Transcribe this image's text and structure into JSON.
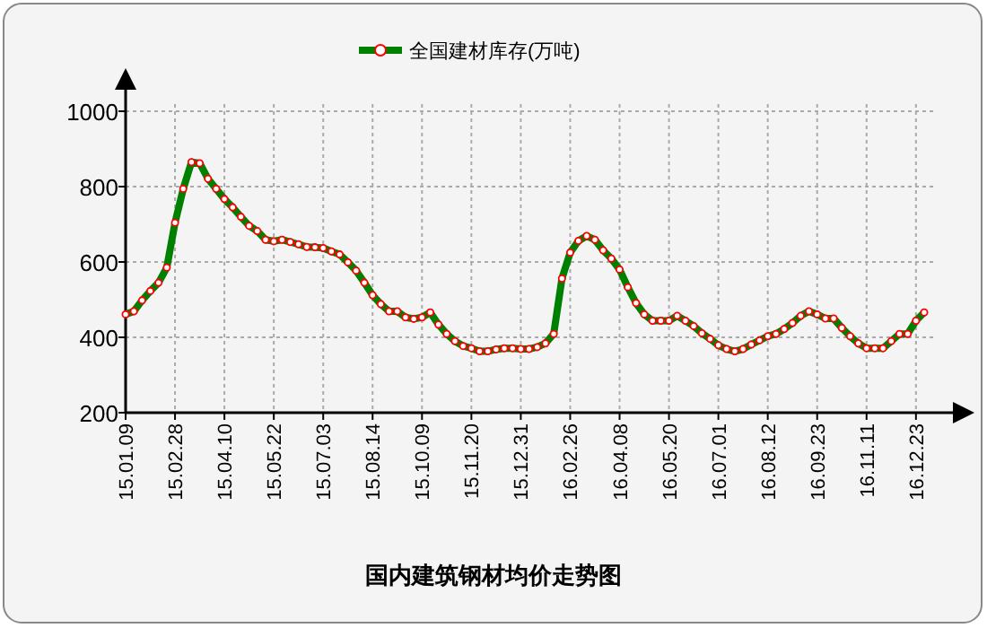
{
  "chart_data": {
    "type": "line",
    "title": "国内建筑钢材均价走势图",
    "categories": [
      "15.01.09",
      null,
      null,
      null,
      null,
      null,
      "15.02.28",
      null,
      null,
      null,
      null,
      null,
      "15.04.10",
      null,
      null,
      null,
      null,
      null,
      "15.05.22",
      null,
      null,
      null,
      null,
      null,
      "15.07.03",
      null,
      null,
      null,
      null,
      null,
      "15.08.14",
      null,
      null,
      null,
      null,
      null,
      "15.10.09",
      null,
      null,
      null,
      null,
      null,
      "15.11.20",
      null,
      null,
      null,
      null,
      null,
      "15.12.31",
      null,
      null,
      null,
      null,
      null,
      "16.02.26",
      null,
      null,
      null,
      null,
      null,
      "16.04.08",
      null,
      null,
      null,
      null,
      null,
      "16.05.20",
      null,
      null,
      null,
      null,
      null,
      "16.07.01",
      null,
      null,
      null,
      null,
      null,
      "16.08.12",
      null,
      null,
      null,
      null,
      null,
      "16.09.23",
      null,
      null,
      null,
      null,
      null,
      "16.11.11",
      null,
      null,
      null,
      null,
      null,
      "16.12.23",
      null
    ],
    "series": [
      {
        "name": "全国建材库存(万吨)",
        "color": "#008000",
        "values": [
          461,
          469,
          498,
          523,
          545,
          585,
          704,
          794,
          865,
          862,
          821,
          794,
          767,
          745,
          720,
          696,
          682,
          659,
          655,
          659,
          653,
          647,
          640,
          639,
          637,
          628,
          620,
          599,
          577,
          545,
          512,
          488,
          469,
          469,
          453,
          449,
          453,
          466,
          434,
          409,
          390,
          377,
          371,
          363,
          363,
          368,
          371,
          371,
          369,
          369,
          374,
          384,
          409,
          556,
          625,
          656,
          669,
          659,
          631,
          609,
          580,
          533,
          491,
          461,
          444,
          444,
          444,
          457,
          444,
          430,
          411,
          396,
          379,
          369,
          363,
          369,
          381,
          392,
          403,
          409,
          422,
          438,
          457,
          469,
          461,
          450,
          450,
          425,
          403,
          384,
          371,
          371,
          371,
          390,
          409,
          409,
          444,
          466
        ]
      }
    ],
    "ylim": [
      200,
      1000
    ],
    "yticks": [
      200,
      400,
      600,
      800,
      1000
    ],
    "grid": true,
    "legend": "top",
    "marker": "circle",
    "line_style": "solid"
  }
}
